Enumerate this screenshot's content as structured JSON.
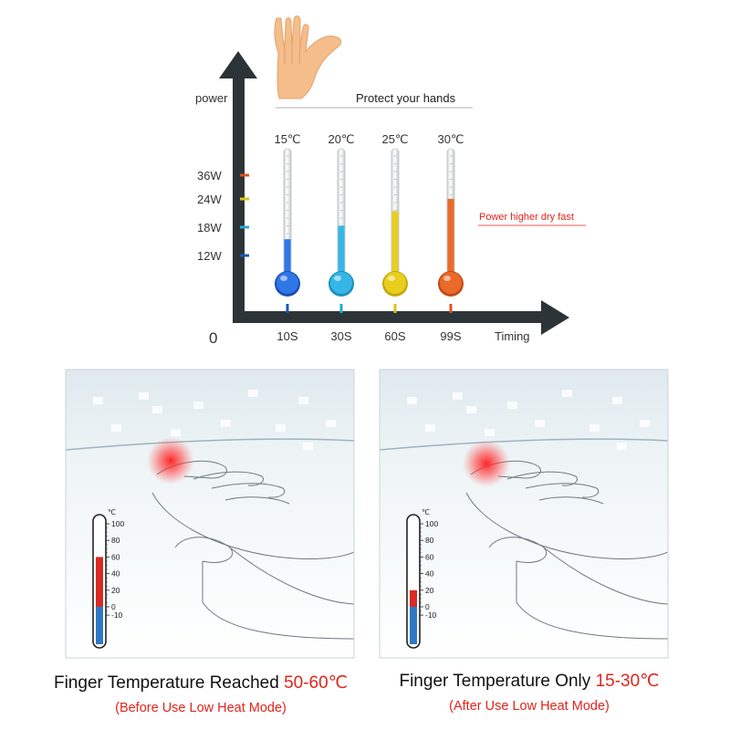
{
  "top_chart": {
    "y_axis_label": "power",
    "x_axis_label": "Timing",
    "origin_label": "0",
    "hand_caption": "Protect your hands",
    "power_levels": [
      {
        "label": "36W",
        "color": "#d9541e"
      },
      {
        "label": "24W",
        "color": "#dcc21a"
      },
      {
        "label": "18W",
        "color": "#27a6d6"
      },
      {
        "label": "12W",
        "color": "#1a58b8"
      }
    ],
    "thermometers": [
      {
        "temp": "15℃",
        "time": "10S",
        "fill": 0.26,
        "color": "#2f76e6",
        "dark": "#1d4fb4",
        "tick": "#1a58b8"
      },
      {
        "temp": "20℃",
        "time": "30S",
        "fill": 0.37,
        "color": "#36b6e6",
        "dark": "#1d8fc0",
        "tick": "#27a6d6"
      },
      {
        "temp": "25℃",
        "time": "60S",
        "fill": 0.49,
        "color": "#e8cf1e",
        "dark": "#c4a80e",
        "tick": "#dcc21a"
      },
      {
        "temp": "30℃",
        "time": "99S",
        "fill": 0.59,
        "color": "#ea6a2a",
        "dark": "#c24a14",
        "tick": "#d9541e"
      }
    ],
    "annotation": "Power higher dry fast",
    "annotation_color": "#e0241b"
  },
  "panels": [
    {
      "unit": "℃",
      "scale": [
        "100",
        "80",
        "60",
        "40",
        "20",
        "0",
        "-10"
      ],
      "red_from": 60,
      "red_to": 0,
      "caption_prefix": "Finger Temperature Reached ",
      "caption_value": "50-60℃",
      "sub_caption": "(Before Use Low Heat Mode)"
    },
    {
      "unit": "℃",
      "scale": [
        "100",
        "80",
        "60",
        "40",
        "20",
        "0",
        "-10"
      ],
      "red_from": 20,
      "red_to": 0,
      "caption_prefix": "Finger Temperature Only ",
      "caption_value": "15-30℃",
      "sub_caption": "(After Use Low Heat Mode)"
    }
  ]
}
